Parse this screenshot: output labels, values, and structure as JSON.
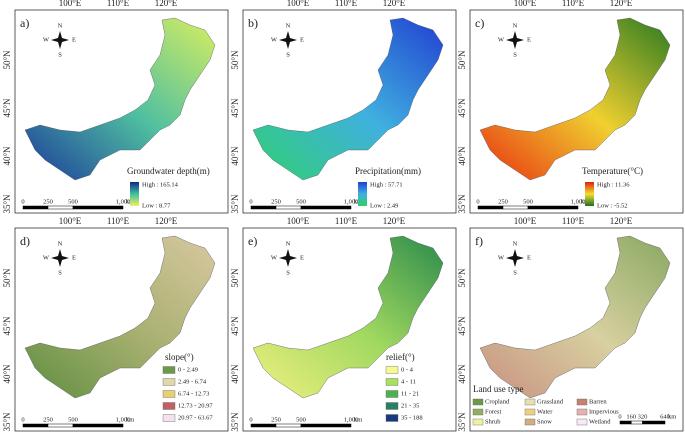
{
  "lon_labels": [
    "100°E",
    "110°E",
    "120°E"
  ],
  "lat_labels": [
    "50°N",
    "45°N",
    "40°N",
    "35°N"
  ],
  "compass": {
    "n": "N",
    "s": "S",
    "e": "E",
    "w": "W"
  },
  "panels": [
    {
      "label": "a)",
      "legend_title": "Groundwater depth(m)",
      "high": "High : 165.14",
      "low": "Low : 8.77",
      "ramp": [
        "#0d2a8a",
        "#3fc0a0",
        "#f0f060"
      ],
      "map_fill": [
        "#1a3a9a",
        "#50c0a0",
        "#d8ee60"
      ],
      "scale_bar": [
        "0",
        "250",
        "500",
        "1,000"
      ],
      "scale_unit": "km"
    },
    {
      "label": "b)",
      "legend_title": "Precipitation(mm)",
      "high": "High : 57.71",
      "low": "Low : 2.49",
      "ramp": [
        "#2040d0",
        "#40b0e0",
        "#30d060"
      ],
      "map_fill": [
        "#30d070",
        "#40b0e0",
        "#2040d0"
      ],
      "scale_bar": [
        "0",
        "250",
        "500",
        "1,000"
      ],
      "scale_unit": "km"
    },
    {
      "label": "c)",
      "legend_title": "Temperature(°C)",
      "high": "High : 11.36",
      "low": "Low : -5.52",
      "ramp": [
        "#e02010",
        "#f0e030",
        "#207020"
      ],
      "map_fill": [
        "#e83010",
        "#f0d030",
        "#2a7a20"
      ],
      "scale_bar": [
        "0",
        "250",
        "500",
        "1,000"
      ],
      "scale_unit": "km"
    },
    {
      "label": "d)",
      "legend_title": "slope(°)",
      "map_fill": [
        "#5e8e40",
        "#a8b070",
        "#d8c8a0"
      ],
      "classes": [
        {
          "name": "0 - 2.49",
          "color": "#6a9a48"
        },
        {
          "name": "2.49 - 6.74",
          "color": "#e0d8a8"
        },
        {
          "name": "6.74 - 12.73",
          "color": "#e8d070"
        },
        {
          "name": "12.73 - 20.97",
          "color": "#c06060"
        },
        {
          "name": "20.97 - 63.67",
          "color": "#f4e0f0"
        }
      ],
      "scale_bar": [
        "0",
        "250",
        "500",
        "1,000"
      ],
      "scale_unit": "km"
    },
    {
      "label": "e)",
      "legend_title": "relief(°)",
      "map_fill": [
        "#f0f080",
        "#a0d860",
        "#2a8a4a"
      ],
      "classes": [
        {
          "name": "0 - 4",
          "color": "#f8f890"
        },
        {
          "name": "4 - 11",
          "color": "#a8e060"
        },
        {
          "name": "11 - 21",
          "color": "#50b050"
        },
        {
          "name": "21 - 35",
          "color": "#2a8060"
        },
        {
          "name": "35 - 188",
          "color": "#1a3a80"
        }
      ],
      "scale_bar": [
        "0",
        "250",
        "500",
        "1,000"
      ],
      "scale_unit": "km"
    },
    {
      "label": "f)",
      "legend_title": "Land use type",
      "map_fill": [
        "#c89080",
        "#d8d0a0",
        "#88a860"
      ],
      "classes": [
        {
          "name": "Cropland",
          "color": "#6a9a48"
        },
        {
          "name": "Grassland",
          "color": "#e8e0b0"
        },
        {
          "name": "Barren",
          "color": "#c88070"
        },
        {
          "name": "Forest",
          "color": "#90b060"
        },
        {
          "name": "Water",
          "color": "#f0d080"
        },
        {
          "name": "Impervious",
          "color": "#e8b0b0"
        },
        {
          "name": "Shrub",
          "color": "#f0f0a0"
        },
        {
          "name": "Snow",
          "color": "#d0b080"
        },
        {
          "name": "Wetland",
          "color": "#f8e8f8"
        }
      ],
      "scale_bar": [
        "0",
        "160",
        "320",
        "640"
      ],
      "scale_unit": "km"
    }
  ]
}
